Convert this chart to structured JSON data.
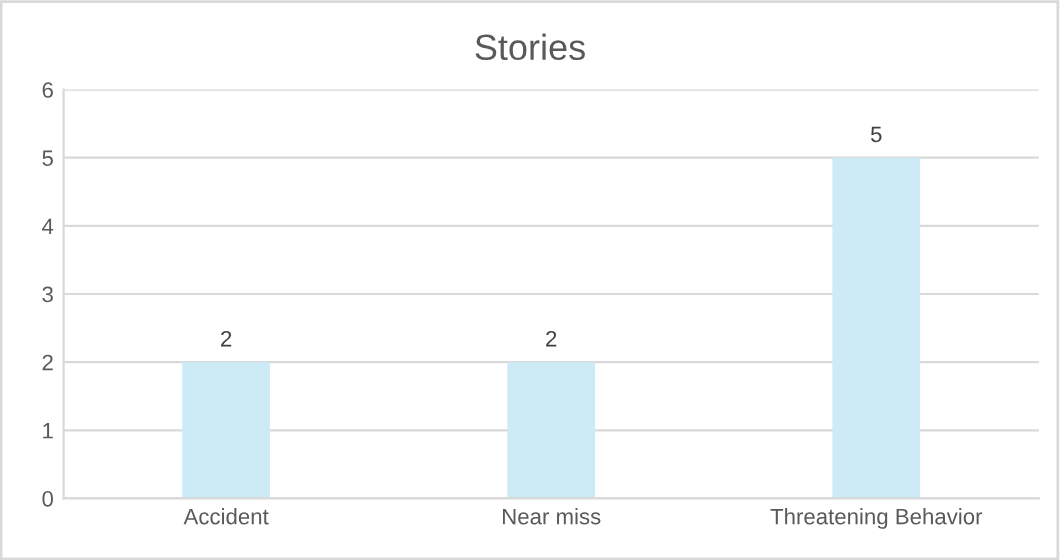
{
  "chart_data": {
    "type": "bar",
    "title": "Stories",
    "categories": [
      "Accident",
      "Near miss",
      "Threatening Behavior"
    ],
    "values": [
      2,
      2,
      5
    ],
    "color": "#cdeaf7",
    "ylim": [
      0,
      6
    ],
    "yticks": [
      0,
      1,
      2,
      3,
      4,
      5,
      6
    ],
    "grid": "y",
    "data_labels": true
  }
}
